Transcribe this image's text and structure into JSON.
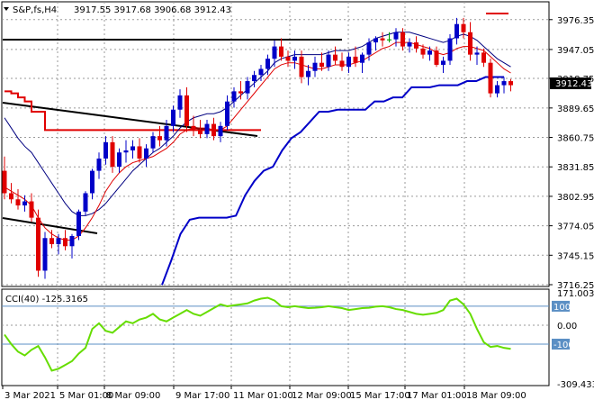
{
  "window": {
    "symbol_title": "S&P,fs,H4",
    "ohlc_text": "3917.55 3917.68 3906.68 3912.43",
    "current_price": "3912.43",
    "buy_marker_color": "#ff0000"
  },
  "main_panel": {
    "price_ticks": [
      "3976.35",
      "3947.05",
      "3918.75",
      "3889.65",
      "3860.75",
      "3831.85",
      "3802.95",
      "3774.05",
      "3745.15",
      "3716.25"
    ],
    "price_range": [
      3716.25,
      3985
    ],
    "colors": {
      "bull_candle": "#0000c8",
      "bear_candle": "#e00000",
      "doji": "#00a000",
      "fast_ma": "#e00000",
      "slow_ma": "#000080",
      "supertrend_up": "#0000c8",
      "supertrend_down": "#e00000",
      "trendline": "#000000",
      "grid": "#9a9a9a"
    },
    "candles": [
      [
        3828,
        3842,
        3800,
        3806
      ],
      [
        3806,
        3816,
        3796,
        3800
      ],
      [
        3800,
        3810,
        3790,
        3794
      ],
      [
        3794,
        3804,
        3788,
        3798
      ],
      [
        3798,
        3806,
        3778,
        3782
      ],
      [
        3782,
        3790,
        3724,
        3730
      ],
      [
        3730,
        3768,
        3722,
        3762
      ],
      [
        3762,
        3770,
        3752,
        3756
      ],
      [
        3756,
        3766,
        3746,
        3762
      ],
      [
        3762,
        3770,
        3750,
        3754
      ],
      [
        3754,
        3766,
        3742,
        3764
      ],
      [
        3764,
        3790,
        3760,
        3788
      ],
      [
        3788,
        3808,
        3784,
        3806
      ],
      [
        3806,
        3830,
        3800,
        3828
      ],
      [
        3828,
        3846,
        3820,
        3840
      ],
      [
        3840,
        3862,
        3834,
        3856
      ],
      [
        3856,
        3862,
        3826,
        3832
      ],
      [
        3832,
        3850,
        3826,
        3846
      ],
      [
        3846,
        3858,
        3836,
        3848
      ],
      [
        3848,
        3858,
        3840,
        3852
      ],
      [
        3852,
        3860,
        3836,
        3840
      ],
      [
        3840,
        3854,
        3832,
        3850
      ],
      [
        3850,
        3866,
        3846,
        3862
      ],
      [
        3862,
        3872,
        3852,
        3858
      ],
      [
        3858,
        3878,
        3852,
        3872
      ],
      [
        3872,
        3892,
        3866,
        3888
      ],
      [
        3888,
        3908,
        3880,
        3902
      ],
      [
        3902,
        3910,
        3866,
        3872
      ],
      [
        3872,
        3882,
        3862,
        3868
      ],
      [
        3868,
        3878,
        3860,
        3864
      ],
      [
        3864,
        3878,
        3860,
        3874
      ],
      [
        3874,
        3880,
        3858,
        3862
      ],
      [
        3862,
        3876,
        3856,
        3872
      ],
      [
        3872,
        3902,
        3868,
        3896
      ],
      [
        3896,
        3910,
        3890,
        3906
      ],
      [
        3906,
        3916,
        3898,
        3904
      ],
      [
        3904,
        3920,
        3898,
        3916
      ],
      [
        3916,
        3926,
        3910,
        3922
      ],
      [
        3922,
        3932,
        3916,
        3928
      ],
      [
        3928,
        3942,
        3922,
        3938
      ],
      [
        3938,
        3956,
        3930,
        3950
      ],
      [
        3950,
        3958,
        3936,
        3940
      ],
      [
        3940,
        3946,
        3930,
        3936
      ],
      [
        3936,
        3946,
        3928,
        3940
      ],
      [
        3940,
        3946,
        3914,
        3920
      ],
      [
        3920,
        3932,
        3912,
        3926
      ],
      [
        3926,
        3940,
        3920,
        3934
      ],
      [
        3934,
        3944,
        3926,
        3930
      ],
      [
        3930,
        3946,
        3926,
        3942
      ],
      [
        3942,
        3950,
        3932,
        3936
      ],
      [
        3936,
        3944,
        3926,
        3930
      ],
      [
        3930,
        3944,
        3924,
        3940
      ],
      [
        3940,
        3950,
        3930,
        3934
      ],
      [
        3934,
        3944,
        3924,
        3942
      ],
      [
        3942,
        3958,
        3936,
        3954
      ],
      [
        3954,
        3960,
        3946,
        3958
      ],
      [
        3958,
        3964,
        3950,
        3956
      ],
      [
        3956,
        3964,
        3954,
        3957
      ],
      [
        3957,
        3968,
        3950,
        3964
      ],
      [
        3964,
        3968,
        3946,
        3950
      ],
      [
        3950,
        3958,
        3944,
        3954
      ],
      [
        3954,
        3960,
        3944,
        3948
      ],
      [
        3948,
        3952,
        3938,
        3942
      ],
      [
        3942,
        3950,
        3936,
        3946
      ],
      [
        3946,
        3950,
        3930,
        3932
      ],
      [
        3932,
        3940,
        3924,
        3936
      ],
      [
        3936,
        3962,
        3932,
        3958
      ],
      [
        3958,
        3978,
        3952,
        3972
      ],
      [
        3972,
        3978,
        3958,
        3964
      ],
      [
        3964,
        3974,
        3936,
        3942
      ],
      [
        3942,
        3950,
        3932,
        3944
      ],
      [
        3944,
        3948,
        3930,
        3934
      ],
      [
        3934,
        3938,
        3900,
        3904
      ],
      [
        3904,
        3916,
        3900,
        3912
      ],
      [
        3912,
        3920,
        3904,
        3916
      ],
      [
        3916,
        3918,
        3906,
        3912
      ]
    ],
    "fast_ma": [
      3812,
      3808,
      3804,
      3800,
      3794,
      3782,
      3772,
      3766,
      3762,
      3760,
      3760,
      3764,
      3772,
      3782,
      3794,
      3808,
      3818,
      3826,
      3832,
      3836,
      3838,
      3840,
      3842,
      3846,
      3850,
      3856,
      3864,
      3868,
      3870,
      3870,
      3870,
      3868,
      3868,
      3872,
      3880,
      3888,
      3896,
      3904,
      3912,
      3920,
      3928,
      3932,
      3934,
      3934,
      3932,
      3930,
      3928,
      3928,
      3930,
      3932,
      3932,
      3932,
      3934,
      3936,
      3940,
      3944,
      3948,
      3950,
      3954,
      3954,
      3954,
      3952,
      3950,
      3948,
      3944,
      3942,
      3944,
      3948,
      3950,
      3950,
      3948,
      3946,
      3940,
      3934,
      3928,
      3924
    ],
    "slow_ma": [
      3880,
      3870,
      3860,
      3852,
      3846,
      3836,
      3826,
      3816,
      3806,
      3796,
      3788,
      3784,
      3784,
      3786,
      3790,
      3796,
      3804,
      3812,
      3820,
      3828,
      3834,
      3840,
      3846,
      3850,
      3856,
      3862,
      3870,
      3876,
      3880,
      3882,
      3884,
      3884,
      3886,
      3890,
      3896,
      3902,
      3908,
      3914,
      3920,
      3926,
      3934,
      3938,
      3940,
      3942,
      3942,
      3942,
      3942,
      3942,
      3944,
      3946,
      3946,
      3946,
      3948,
      3950,
      3954,
      3958,
      3960,
      3962,
      3964,
      3964,
      3964,
      3962,
      3960,
      3958,
      3956,
      3954,
      3956,
      3960,
      3962,
      3960,
      3956,
      3950,
      3944,
      3938,
      3934,
      3930
    ],
    "supertrend": [
      3906,
      3904,
      3900,
      3896,
      3886,
      3886,
      3868,
      3868,
      3868,
      3868,
      3868,
      3868,
      3868,
      3868,
      3868,
      3868,
      3868,
      3868,
      3868,
      3868,
      3868,
      3868,
      3868,
      3868,
      3868,
      3868,
      3868,
      3868,
      3868,
      3868,
      3868,
      3868,
      3868,
      3868,
      3868,
      3868,
      3868,
      3868,
      3868,
      3868,
      3868,
      3868,
      3868,
      3868,
      3868,
      3868,
      3868,
      3868,
      3868,
      3868,
      3868,
      3868,
      3868,
      3868,
      3868,
      3868,
      3868,
      3868,
      3868,
      3868,
      3868,
      3868,
      3868,
      3868,
      3868,
      3868,
      3868,
      3868,
      3868,
      3868,
      3868,
      3868,
      3868,
      3868,
      3868,
      3868
    ],
    "supertrend_up_start": 38,
    "supertrend_up": [
      3716,
      3740,
      3766,
      3780,
      3782,
      3782,
      3782,
      3782,
      3784,
      3804,
      3818,
      3828,
      3832,
      3848,
      3860,
      3866,
      3876,
      3886,
      3886,
      3888,
      3888,
      3888,
      3888,
      3896,
      3896,
      3900,
      3900,
      3910,
      3910,
      3910,
      3912,
      3912,
      3912,
      3916,
      3916,
      3920,
      3920,
      3920
    ]
  },
  "cci_panel": {
    "label": "CCI(40) -125.3165",
    "ticks": [
      "171.0033",
      "100",
      "0.00",
      "-100",
      "-309.4331"
    ],
    "range": [
      -309.4331,
      171.0033
    ],
    "line_color": "#66dd00",
    "level_color": "#5b8fc4",
    "values": [
      -50,
      -100,
      -140,
      -160,
      -130,
      -110,
      -170,
      -240,
      -230,
      -210,
      -190,
      -150,
      -120,
      -20,
      10,
      -30,
      -40,
      -10,
      20,
      10,
      30,
      40,
      60,
      30,
      20,
      40,
      60,
      80,
      60,
      50,
      70,
      90,
      110,
      100,
      105,
      110,
      115,
      130,
      140,
      145,
      130,
      100,
      95,
      100,
      95,
      90,
      92,
      95,
      100,
      95,
      90,
      80,
      85,
      90,
      92,
      98,
      100,
      95,
      85,
      80,
      70,
      60,
      55,
      60,
      65,
      80,
      130,
      140,
      110,
      60,
      -20,
      -90,
      -115,
      -110,
      -120,
      -125
    ]
  },
  "time_axis": [
    "3 Mar 2021",
    "5 Mar 01:00",
    "8 Mar 09:00",
    "9 Mar 17:00",
    "11 Mar 01:00",
    "12 Mar 09:00",
    "15 Mar 17:00",
    "17 Mar 01:00",
    "18 Mar 09:00"
  ]
}
